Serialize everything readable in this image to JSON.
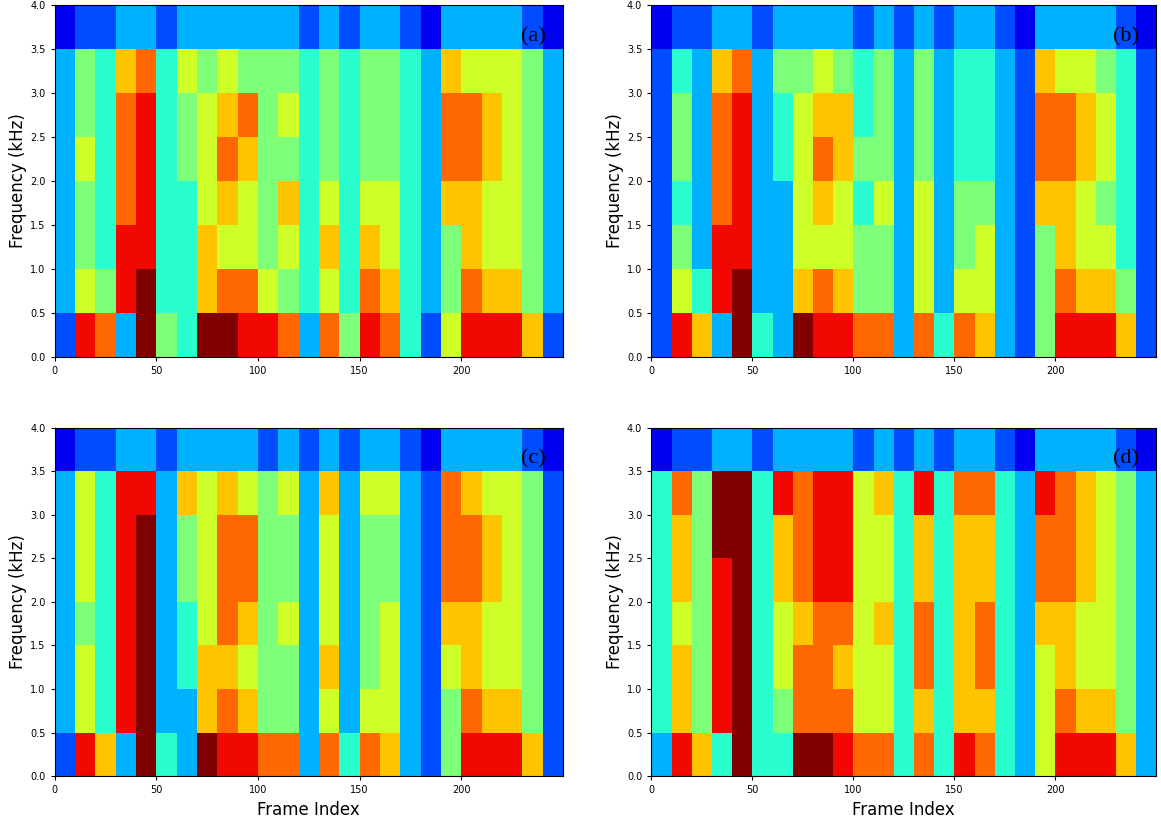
{
  "chart_data": [
    {
      "type": "heatmap",
      "label": "(a)",
      "ylabel": "Frequency (kHz)",
      "xlabel": null,
      "xlim": [
        0,
        250
      ],
      "xticks": [
        0,
        50,
        100,
        150,
        200
      ],
      "ylim": [
        0.0,
        4.0
      ],
      "yticks": [
        0.0,
        0.5,
        1.0,
        1.5,
        2.0,
        2.5,
        3.0,
        3.5,
        4.0
      ],
      "x_edges": [
        0,
        10,
        20,
        30,
        40,
        50,
        60,
        70,
        80,
        90,
        100,
        110,
        120,
        130,
        140,
        150,
        160,
        170,
        180,
        190,
        200,
        210,
        220,
        230,
        240,
        250
      ],
      "y_edges": [
        0.0,
        0.5,
        1.0,
        1.5,
        2.0,
        2.5,
        3.0,
        3.5,
        4.0
      ],
      "color_range": [
        0,
        10
      ],
      "cells": [
        [
          2,
          9,
          8,
          3,
          10,
          5,
          4,
          10,
          10,
          9,
          9,
          8,
          3,
          8,
          5,
          9,
          8,
          4,
          2,
          6,
          9,
          9,
          9,
          7,
          2
        ],
        [
          3,
          6,
          5,
          9,
          10,
          4,
          4,
          7,
          8,
          8,
          6,
          5,
          4,
          6,
          4,
          8,
          7,
          4,
          3,
          5,
          8,
          7,
          7,
          5,
          3
        ],
        [
          3,
          5,
          4,
          9,
          9,
          4,
          4,
          7,
          6,
          6,
          5,
          6,
          4,
          7,
          4,
          7,
          6,
          4,
          3,
          5,
          7,
          6,
          6,
          5,
          3
        ],
        [
          3,
          5,
          4,
          8,
          9,
          4,
          4,
          6,
          7,
          6,
          5,
          7,
          4,
          6,
          4,
          6,
          6,
          4,
          3,
          7,
          7,
          6,
          6,
          5,
          3
        ],
        [
          3,
          6,
          4,
          8,
          9,
          4,
          5,
          6,
          8,
          7,
          5,
          5,
          4,
          5,
          4,
          5,
          5,
          4,
          3,
          8,
          8,
          7,
          6,
          5,
          3
        ],
        [
          3,
          5,
          4,
          8,
          9,
          4,
          5,
          6,
          7,
          8,
          5,
          6,
          4,
          5,
          4,
          5,
          5,
          4,
          3,
          8,
          8,
          7,
          6,
          5,
          3
        ],
        [
          3,
          5,
          4,
          7,
          8,
          4,
          6,
          5,
          6,
          5,
          5,
          5,
          4,
          5,
          4,
          5,
          5,
          4,
          3,
          7,
          6,
          6,
          6,
          5,
          3
        ],
        [
          1,
          2,
          2,
          3,
          3,
          2,
          3,
          3,
          3,
          3,
          3,
          3,
          2,
          3,
          2,
          3,
          3,
          2,
          1,
          3,
          3,
          3,
          3,
          2,
          1
        ]
      ]
    },
    {
      "type": "heatmap",
      "label": "(b)",
      "ylabel": "Frequency (kHz)",
      "xlabel": null,
      "xlim": [
        0,
        250
      ],
      "xticks": [
        0,
        50,
        100,
        150,
        200
      ],
      "ylim": [
        0.0,
        4.0
      ],
      "yticks": [
        0.0,
        0.5,
        1.0,
        1.5,
        2.0,
        2.5,
        3.0,
        3.5,
        4.0
      ],
      "x_edges": [
        0,
        10,
        20,
        30,
        40,
        50,
        60,
        70,
        80,
        90,
        100,
        110,
        120,
        130,
        140,
        150,
        160,
        170,
        180,
        190,
        200,
        210,
        220,
        230,
        240,
        250
      ],
      "y_edges": [
        0.0,
        0.5,
        1.0,
        1.5,
        2.0,
        2.5,
        3.0,
        3.5,
        4.0
      ],
      "color_range": [
        0,
        10
      ],
      "cells": [
        [
          2,
          9,
          7,
          3,
          10,
          4,
          3,
          10,
          9,
          9,
          8,
          8,
          3,
          8,
          4,
          8,
          7,
          3,
          2,
          5,
          9,
          9,
          9,
          7,
          2
        ],
        [
          2,
          6,
          4,
          9,
          10,
          3,
          3,
          7,
          8,
          7,
          5,
          5,
          3,
          6,
          3,
          6,
          6,
          3,
          2,
          5,
          8,
          7,
          7,
          5,
          2
        ],
        [
          2,
          5,
          3,
          9,
          9,
          3,
          3,
          6,
          6,
          6,
          5,
          5,
          3,
          6,
          3,
          5,
          6,
          3,
          2,
          5,
          7,
          6,
          6,
          4,
          2
        ],
        [
          2,
          4,
          3,
          8,
          9,
          3,
          3,
          6,
          7,
          6,
          4,
          6,
          3,
          6,
          3,
          5,
          5,
          3,
          2,
          7,
          7,
          6,
          5,
          4,
          2
        ],
        [
          2,
          5,
          3,
          8,
          9,
          3,
          4,
          6,
          8,
          7,
          5,
          5,
          3,
          5,
          3,
          4,
          4,
          3,
          2,
          8,
          8,
          7,
          6,
          4,
          2
        ],
        [
          2,
          5,
          3,
          8,
          9,
          3,
          4,
          6,
          7,
          7,
          4,
          5,
          3,
          5,
          3,
          4,
          4,
          3,
          2,
          8,
          8,
          7,
          6,
          4,
          2
        ],
        [
          2,
          4,
          3,
          7,
          8,
          3,
          5,
          5,
          6,
          5,
          4,
          5,
          3,
          5,
          3,
          4,
          4,
          3,
          2,
          7,
          6,
          6,
          5,
          4,
          2
        ],
        [
          1,
          2,
          2,
          3,
          3,
          2,
          3,
          3,
          3,
          3,
          2,
          3,
          2,
          3,
          2,
          3,
          3,
          2,
          1,
          3,
          3,
          3,
          3,
          2,
          1
        ]
      ]
    },
    {
      "type": "heatmap",
      "label": "(c)",
      "ylabel": "Frequency (kHz)",
      "xlabel": "Frame Index",
      "xlim": [
        0,
        250
      ],
      "xticks": [
        0,
        50,
        100,
        150,
        200
      ],
      "ylim": [
        0.0,
        4.0
      ],
      "yticks": [
        0.0,
        0.5,
        1.0,
        1.5,
        2.0,
        2.5,
        3.0,
        3.5,
        4.0
      ],
      "x_edges": [
        0,
        10,
        20,
        30,
        40,
        50,
        60,
        70,
        80,
        90,
        100,
        110,
        120,
        130,
        140,
        150,
        160,
        170,
        180,
        190,
        200,
        210,
        220,
        230,
        240,
        250
      ],
      "y_edges": [
        0.0,
        0.5,
        1.0,
        1.5,
        2.0,
        2.5,
        3.0,
        3.5,
        4.0
      ],
      "color_range": [
        0,
        10
      ],
      "cells": [
        [
          2,
          9,
          7,
          3,
          10,
          4,
          3,
          10,
          9,
          9,
          8,
          8,
          3,
          8,
          4,
          8,
          7,
          3,
          2,
          5,
          9,
          9,
          9,
          7,
          2
        ],
        [
          3,
          6,
          4,
          9,
          10,
          3,
          3,
          7,
          8,
          7,
          5,
          5,
          3,
          6,
          3,
          6,
          6,
          3,
          2,
          5,
          8,
          7,
          7,
          5,
          2
        ],
        [
          3,
          6,
          4,
          9,
          10,
          3,
          4,
          7,
          7,
          6,
          5,
          5,
          3,
          7,
          3,
          5,
          6,
          3,
          2,
          6,
          7,
          6,
          6,
          5,
          2
        ],
        [
          3,
          5,
          4,
          9,
          10,
          3,
          4,
          6,
          8,
          7,
          5,
          6,
          3,
          6,
          3,
          5,
          6,
          3,
          2,
          7,
          7,
          6,
          6,
          5,
          2
        ],
        [
          3,
          6,
          4,
          9,
          10,
          3,
          5,
          6,
          8,
          8,
          5,
          5,
          3,
          6,
          3,
          5,
          5,
          3,
          2,
          8,
          8,
          7,
          6,
          5,
          2
        ],
        [
          3,
          6,
          4,
          9,
          10,
          3,
          5,
          6,
          8,
          8,
          5,
          5,
          3,
          6,
          3,
          5,
          5,
          3,
          2,
          8,
          8,
          7,
          6,
          5,
          2
        ],
        [
          3,
          6,
          4,
          9,
          9,
          3,
          7,
          6,
          7,
          6,
          5,
          6,
          3,
          7,
          3,
          6,
          6,
          3,
          2,
          8,
          7,
          6,
          6,
          5,
          2
        ],
        [
          1,
          2,
          2,
          3,
          3,
          2,
          3,
          3,
          3,
          3,
          2,
          3,
          2,
          3,
          2,
          3,
          3,
          2,
          1,
          3,
          3,
          3,
          3,
          2,
          1
        ]
      ]
    },
    {
      "type": "heatmap",
      "label": "(d)",
      "ylabel": "Frequency (kHz)",
      "xlabel": "Frame Index",
      "xlim": [
        0,
        250
      ],
      "xticks": [
        0,
        50,
        100,
        150,
        200
      ],
      "ylim": [
        0.0,
        4.0
      ],
      "yticks": [
        0.0,
        0.5,
        1.0,
        1.5,
        2.0,
        2.5,
        3.0,
        3.5,
        4.0
      ],
      "x_edges": [
        0,
        10,
        20,
        30,
        40,
        50,
        60,
        70,
        80,
        90,
        100,
        110,
        120,
        130,
        140,
        150,
        160,
        170,
        180,
        190,
        200,
        210,
        220,
        230,
        240,
        250
      ],
      "y_edges": [
        0.0,
        0.5,
        1.0,
        1.5,
        2.0,
        2.5,
        3.0,
        3.5,
        4.0
      ],
      "color_range": [
        0,
        10
      ],
      "cells": [
        [
          3,
          9,
          7,
          4,
          10,
          4,
          4,
          10,
          10,
          9,
          8,
          8,
          4,
          8,
          4,
          9,
          8,
          4,
          3,
          6,
          9,
          9,
          9,
          7,
          3
        ],
        [
          4,
          7,
          5,
          9,
          10,
          4,
          5,
          8,
          8,
          8,
          6,
          6,
          4,
          7,
          4,
          7,
          7,
          4,
          3,
          6,
          8,
          7,
          7,
          5,
          3
        ],
        [
          4,
          7,
          5,
          9,
          10,
          4,
          6,
          8,
          8,
          7,
          6,
          6,
          4,
          8,
          4,
          7,
          8,
          4,
          3,
          6,
          7,
          6,
          6,
          5,
          3
        ],
        [
          4,
          6,
          5,
          9,
          10,
          4,
          6,
          7,
          8,
          8,
          6,
          7,
          4,
          8,
          4,
          7,
          8,
          4,
          3,
          7,
          7,
          6,
          6,
          5,
          3
        ],
        [
          4,
          7,
          5,
          9,
          10,
          4,
          7,
          8,
          9,
          9,
          6,
          6,
          4,
          7,
          4,
          7,
          7,
          4,
          3,
          8,
          8,
          7,
          6,
          5,
          3
        ],
        [
          4,
          7,
          5,
          10,
          10,
          4,
          7,
          8,
          9,
          9,
          6,
          6,
          4,
          7,
          4,
          7,
          7,
          4,
          3,
          8,
          8,
          7,
          6,
          5,
          3
        ],
        [
          4,
          8,
          5,
          10,
          10,
          4,
          9,
          8,
          9,
          9,
          6,
          7,
          4,
          9,
          4,
          8,
          8,
          4,
          3,
          9,
          8,
          7,
          6,
          5,
          3
        ],
        [
          1,
          2,
          2,
          3,
          3,
          2,
          3,
          3,
          3,
          3,
          2,
          3,
          2,
          3,
          2,
          3,
          3,
          2,
          1,
          3,
          3,
          3,
          3,
          2,
          1
        ]
      ]
    }
  ]
}
